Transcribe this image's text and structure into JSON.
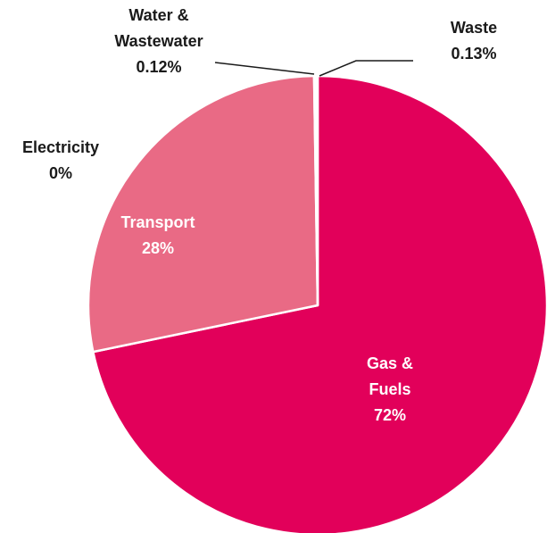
{
  "chart_data": {
    "type": "pie",
    "slices": [
      {
        "label": "Gas & Fuels",
        "label_lines": [
          "Gas &",
          "Fuels"
        ],
        "value_label": "72%",
        "value": 71.75,
        "color": "#E2005A",
        "label_inside": true
      },
      {
        "label": "Electricity",
        "label_lines": [
          "Electricity"
        ],
        "value_label": "0%",
        "value": 0.0,
        "color": "#F0B3C5",
        "label_inside": false
      },
      {
        "label": "Transport",
        "label_lines": [
          "Transport"
        ],
        "value_label": "28%",
        "value": 28.0,
        "color": "#E96A85",
        "label_inside": true
      },
      {
        "label": "Water & Wastewater",
        "label_lines": [
          "Water &",
          "Wastewater"
        ],
        "value_label": "0.12%",
        "value": 0.12,
        "color": "#C0003F",
        "label_inside": false
      },
      {
        "label": "Waste",
        "label_lines": [
          "Waste"
        ],
        "value_label": "0.13%",
        "value": 0.13,
        "color": "#A3004A",
        "label_inside": false
      }
    ],
    "inside_label_color": "#ffffff",
    "outside_label_color": "#1a1a1a",
    "legend": "none"
  }
}
